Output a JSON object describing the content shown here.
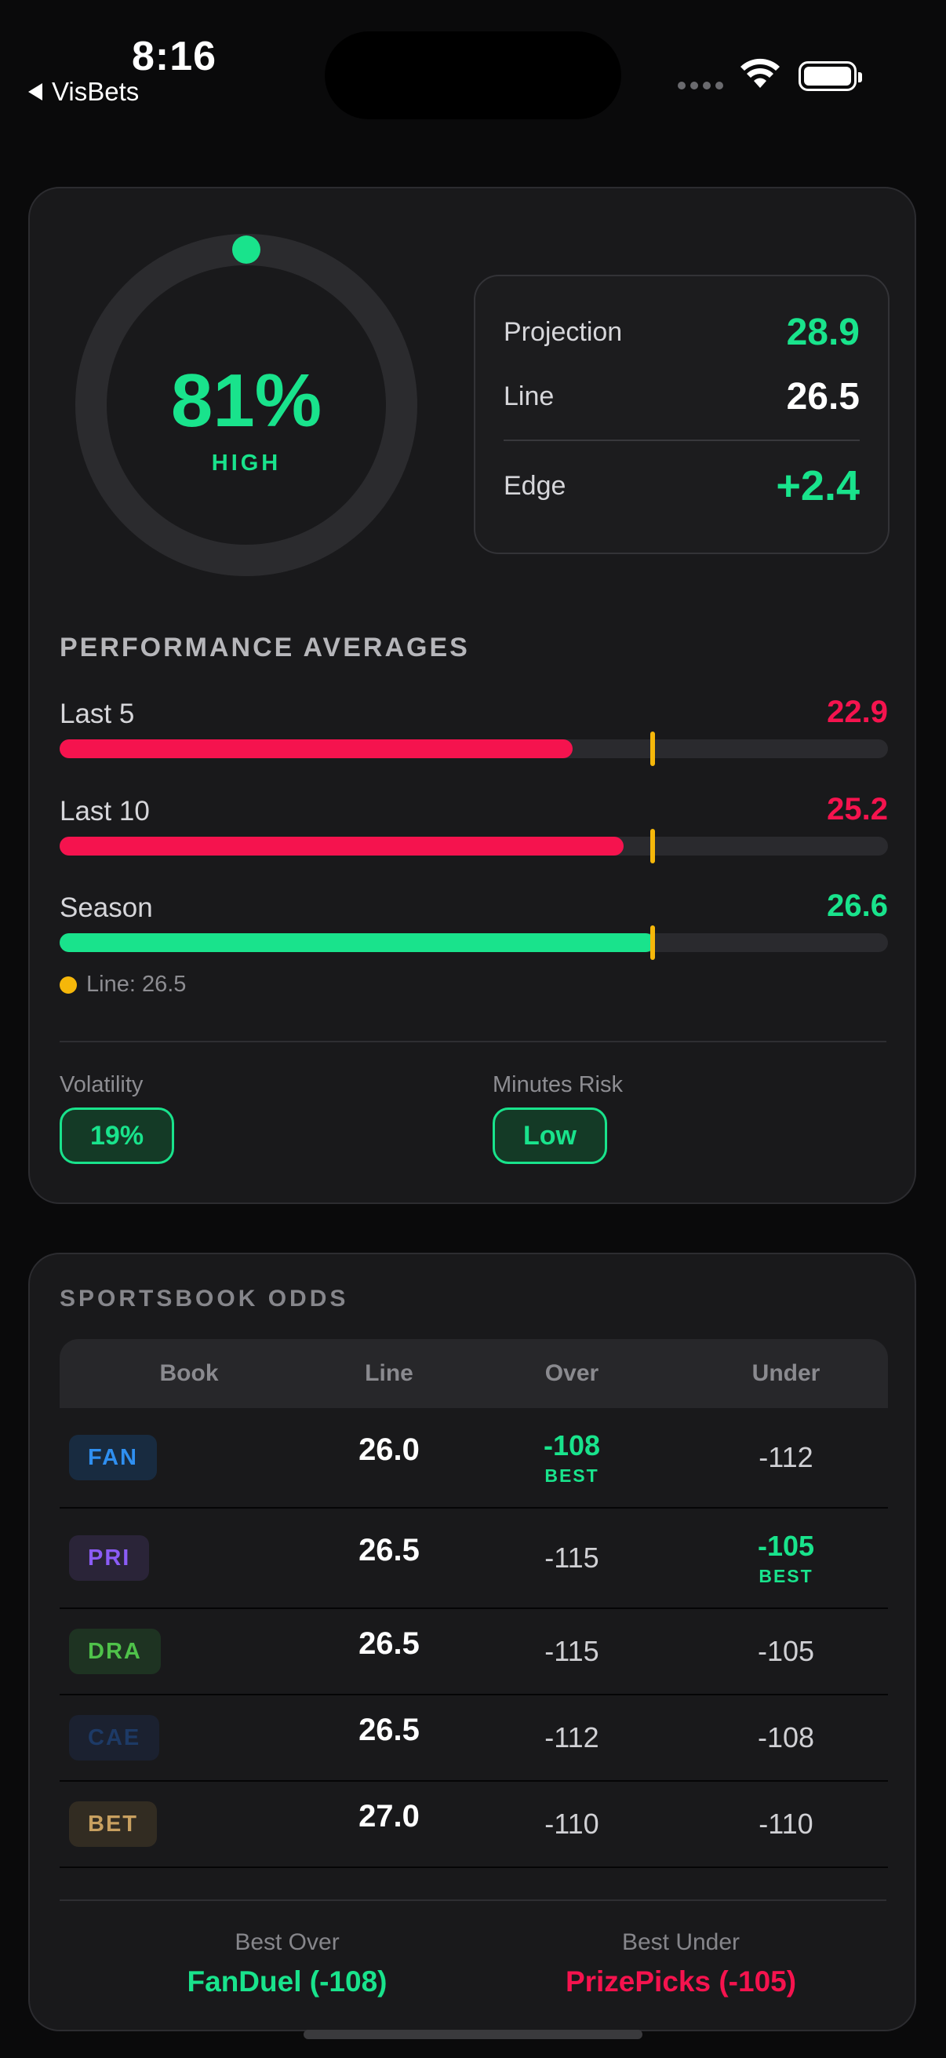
{
  "status_bar": {
    "time": "8:16",
    "back_label": "VisBets"
  },
  "colors": {
    "green": "#19e38c",
    "red": "#f5134e",
    "yellow": "#f5b70a"
  },
  "confidence": {
    "percent_label": "81%",
    "percent": 81,
    "level": "HIGH"
  },
  "projection": {
    "projection_label": "Projection",
    "projection_value": "28.9",
    "line_label": "Line",
    "line_value": "26.5",
    "edge_label": "Edge",
    "edge_value": "+2.4"
  },
  "performance": {
    "title": "PERFORMANCE AVERAGES",
    "scale_max": 37,
    "line": 26.5,
    "rows": [
      {
        "label": "Last 5",
        "value": "22.9",
        "number": 22.9,
        "color": "#f5134e"
      },
      {
        "label": "Last 10",
        "value": "25.2",
        "number": 25.2,
        "color": "#f5134e"
      },
      {
        "label": "Season",
        "value": "26.6",
        "number": 26.6,
        "color": "#19e38c"
      }
    ],
    "legend": "Line: 26.5"
  },
  "metrics": {
    "volatility_label": "Volatility",
    "volatility_value": "19%",
    "minutes_label": "Minutes Risk",
    "minutes_value": "Low"
  },
  "odds": {
    "title": "SPORTSBOOK ODDS",
    "headers": {
      "book": "Book",
      "line": "Line",
      "over": "Over",
      "under": "Under"
    },
    "rows": [
      {
        "book": "FAN",
        "book_color": "#2f8ff0",
        "badge_bg": "#182b40",
        "line": "26.0",
        "over": "-108",
        "under": "-112",
        "best": "over"
      },
      {
        "book": "PRI",
        "book_color": "#8b5cf6",
        "badge_bg": "#2a2438",
        "line": "26.5",
        "over": "-115",
        "under": "-105",
        "best": "under"
      },
      {
        "book": "DRA",
        "book_color": "#4fc24a",
        "badge_bg": "#1e3322",
        "line": "26.5",
        "over": "-115",
        "under": "-105",
        "best": ""
      },
      {
        "book": "CAE",
        "book_color": "#1d3a66",
        "badge_bg": "#1b2130",
        "line": "26.5",
        "over": "-112",
        "under": "-108",
        "best": ""
      },
      {
        "book": "BET",
        "book_color": "#c8a060",
        "badge_bg": "#322c22",
        "line": "27.0",
        "over": "-110",
        "under": "-110",
        "best": ""
      }
    ],
    "best_tag": "BEST",
    "best_over_label": "Best Over",
    "best_over_value": "FanDuel (-108)",
    "best_under_label": "Best Under",
    "best_under_value": "PrizePicks (-105)"
  }
}
